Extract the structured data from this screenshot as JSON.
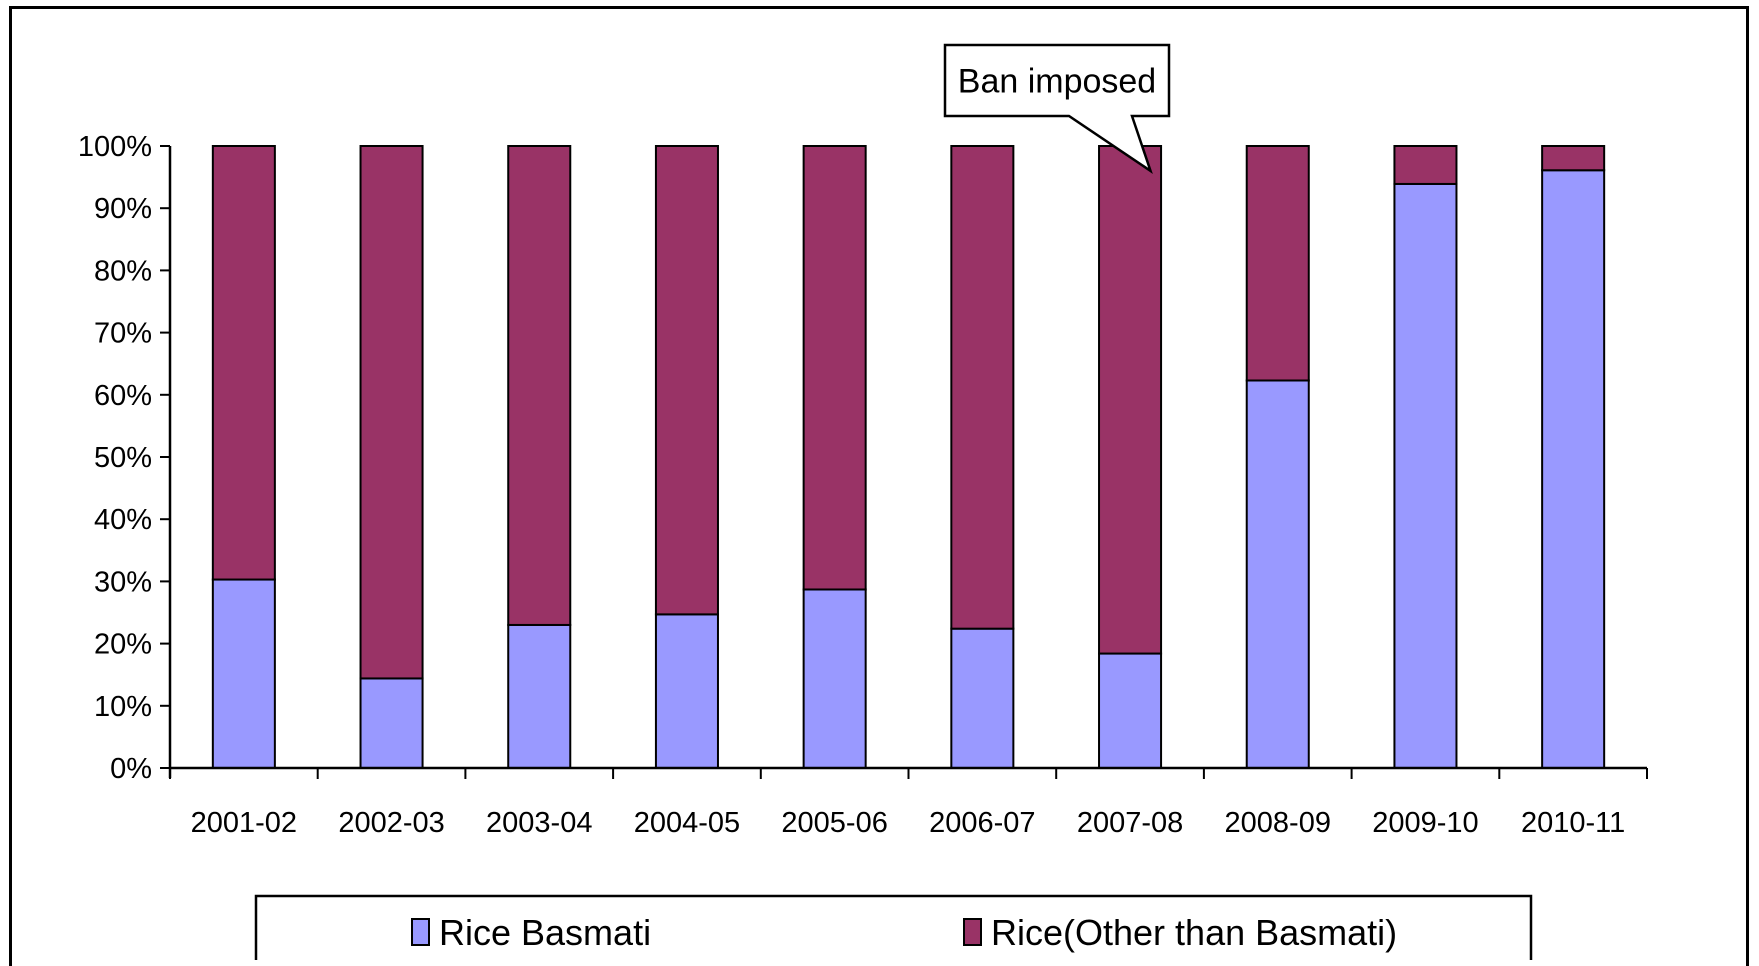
{
  "chart_data": {
    "type": "bar",
    "stacked": true,
    "categories": [
      "2001-02",
      "2002-03",
      "2003-04",
      "2004-05",
      "2005-06",
      "2006-07",
      "2007-08",
      "2008-09",
      "2009-10",
      "2010-11"
    ],
    "series": [
      {
        "name": "Rice Basmati",
        "color": "#9999FF",
        "values": [
          30.3,
          14.4,
          23.0,
          24.7,
          28.7,
          22.4,
          18.4,
          62.3,
          93.9,
          96.1
        ]
      },
      {
        "name": "Rice(Other than Basmati)",
        "color": "#993366",
        "values": [
          69.7,
          85.6,
          77.0,
          75.3,
          71.3,
          77.6,
          81.6,
          37.7,
          6.1,
          3.9
        ]
      }
    ],
    "yticks": [
      "0%",
      "10%",
      "20%",
      "30%",
      "40%",
      "50%",
      "60%",
      "70%",
      "80%",
      "90%",
      "100%"
    ],
    "ylim": [
      0,
      100
    ],
    "grid": false,
    "legend_position": "bottom",
    "annotation": {
      "text": "Ban imposed",
      "target_category": "2007-08"
    }
  }
}
